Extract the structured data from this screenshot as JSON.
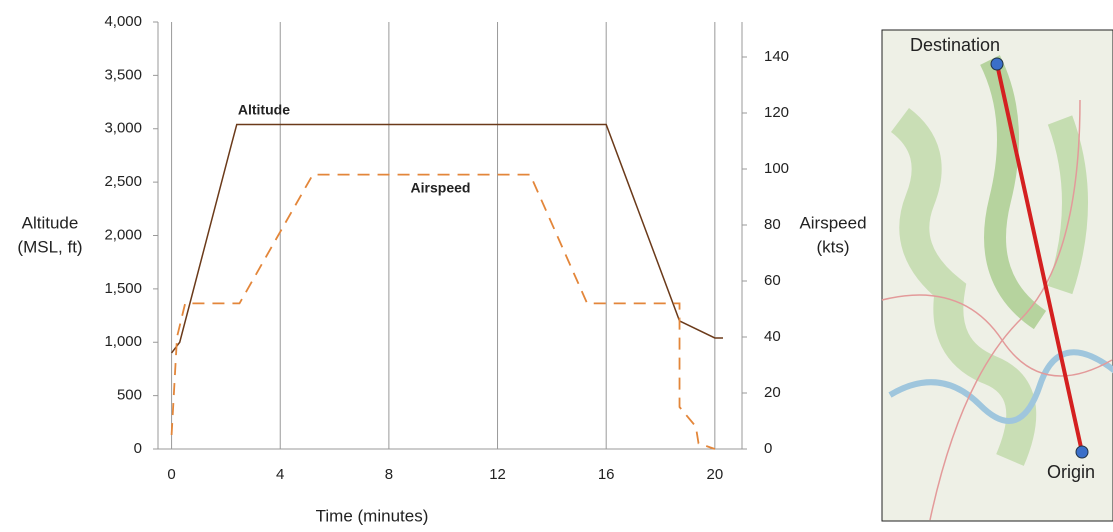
{
  "chart_data": {
    "type": "line",
    "xlabel": "Time (minutes)",
    "ylabel": [
      "Altitude",
      "(MSL, ft)"
    ],
    "y2label": [
      "Airspeed",
      "(kts)"
    ],
    "xlim": [
      -0.5,
      21
    ],
    "xticks": [
      0,
      4,
      8,
      12,
      16,
      20
    ],
    "ylim": [
      0,
      4000
    ],
    "yticks": [
      0,
      500,
      {
        "value": 1000,
        "label": "1,000"
      },
      {
        "value": 1500,
        "label": "1,500"
      },
      {
        "value": 2000,
        "label": "2,000"
      },
      {
        "value": 2500,
        "label": "2,500"
      },
      {
        "value": 3000,
        "label": "3,000"
      },
      {
        "value": 3500,
        "label": "3,500"
      },
      {
        "value": 4000,
        "label": "4,000"
      }
    ],
    "y2lim": [
      0,
      152.5
    ],
    "y2ticks": [
      0,
      20,
      40,
      60,
      80,
      100,
      120,
      140
    ],
    "grid": true,
    "series": [
      {
        "name": "Altitude",
        "color": "#6b3a1a",
        "dash": false,
        "x": [
          0,
          0.3,
          2.2,
          2.4,
          16,
          18.7,
          20,
          20.3
        ],
        "values": [
          900,
          1000,
          2850,
          3040,
          3040,
          1200,
          1040,
          1040
        ]
      },
      {
        "name": "Airspeed",
        "color": "#e3863a",
        "dash": true,
        "axis": "y2",
        "x": [
          0,
          0.2,
          0.5,
          2.5,
          5.2,
          13.2,
          15.3,
          18.7,
          18.7,
          19.3,
          19.4,
          20
        ],
        "values": [
          5,
          40,
          52,
          52,
          98,
          98,
          52,
          52,
          15,
          8,
          2,
          0
        ]
      }
    ],
    "annotations": [
      {
        "text": "Altitude",
        "x": 3.4,
        "y": 3170
      },
      {
        "text": "Airspeed",
        "x": 9.9,
        "y": 93
      }
    ]
  },
  "map": {
    "labels": [
      "Destination",
      "Origin"
    ]
  }
}
